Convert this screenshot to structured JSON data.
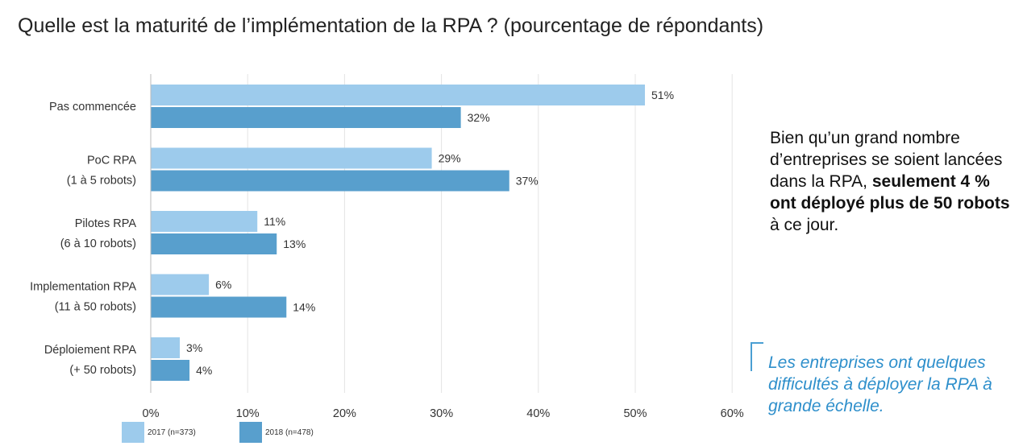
{
  "title": "Quelle est la maturité de l’implémentation de la RPA ? (pourcentage de répondants)",
  "chart_data": {
    "type": "bar",
    "orientation": "horizontal",
    "categories": [
      [
        "Pas commencée"
      ],
      [
        "PoC RPA",
        "(1 à 5 robots)"
      ],
      [
        "Pilotes RPA",
        "(6 à 10 robots)"
      ],
      [
        "Implementation RPA",
        "(11 à 50 robots)"
      ],
      [
        "Déploiement RPA",
        "(+ 50 robots)"
      ]
    ],
    "series": [
      {
        "name": "2017 (n=373)",
        "color": "#9dcbec",
        "values": [
          51,
          29,
          11,
          6,
          3
        ],
        "labels": [
          "51%",
          "29%",
          "11%",
          "6%",
          "3%"
        ]
      },
      {
        "name": "2018 (n=478)",
        "color": "#589fcd",
        "values": [
          32,
          37,
          13,
          14,
          4
        ],
        "labels": [
          "32%",
          "37%",
          "13%",
          "14%",
          "4%"
        ]
      }
    ],
    "xlim": [
      0,
      60
    ],
    "xticks": [
      {
        "value": 0,
        "label": "0%"
      },
      {
        "value": 10,
        "label": "10%"
      },
      {
        "value": 20,
        "label": "20%"
      },
      {
        "value": 30,
        "label": "30%"
      },
      {
        "value": 40,
        "label": "40%"
      },
      {
        "value": 50,
        "label": "50%"
      },
      {
        "value": 60,
        "label": "60%"
      }
    ],
    "grid": true,
    "legend": "bottom-left"
  },
  "side_note": {
    "plain_1": "Bien qu’un grand nombre d’entreprises se soient lancées dans la RPA, ",
    "bold": "seulement 4 % ont déployé plus de 50 robots",
    "plain_2": " à ce jour."
  },
  "quote": "Les entreprises ont quelques difficultés à déployer la RPA à grande échelle."
}
